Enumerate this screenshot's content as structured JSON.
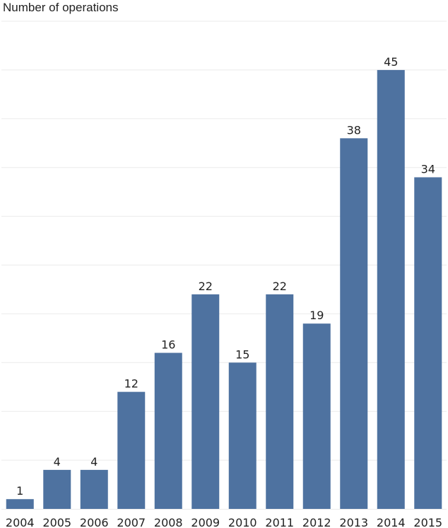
{
  "chart_data": {
    "type": "bar",
    "title": "",
    "xlabel": "",
    "ylabel": "Number of operations",
    "categories": [
      "2004",
      "2005",
      "2006",
      "2007",
      "2008",
      "2009",
      "2010",
      "2011",
      "2012",
      "2013",
      "2014",
      "2015"
    ],
    "values": [
      1,
      4,
      4,
      12,
      16,
      22,
      15,
      22,
      19,
      38,
      45,
      34
    ],
    "ylim": [
      0,
      50
    ],
    "grid": true,
    "bar_color": "#4e72a0"
  }
}
